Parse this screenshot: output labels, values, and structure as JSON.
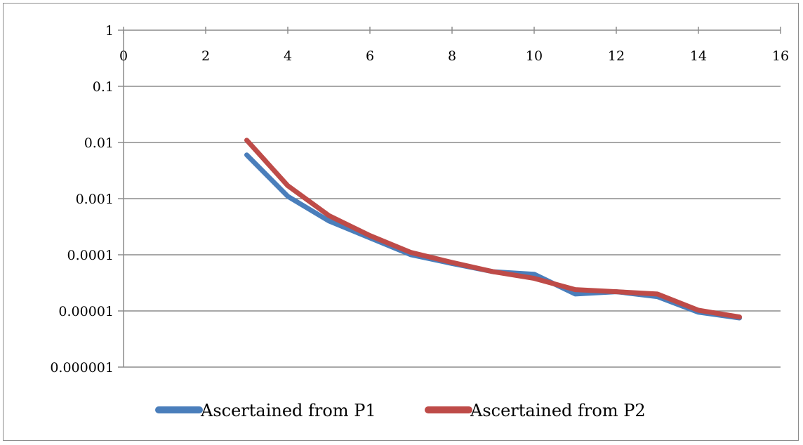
{
  "chart_data": {
    "type": "line",
    "title": "",
    "xlabel": "",
    "ylabel": "",
    "xlim": [
      0,
      16
    ],
    "ylim": [
      1e-06,
      1
    ],
    "y_scale": "log",
    "x_ticks": [
      "0",
      "2",
      "4",
      "6",
      "8",
      "10",
      "12",
      "14",
      "16"
    ],
    "y_ticks": [
      "1",
      "0.1",
      "0.01",
      "0.001",
      "0.0001",
      "0.00001",
      "0.000001"
    ],
    "grid": "horizontal",
    "legend_position": "bottom",
    "series": [
      {
        "name": "Ascertained from P1",
        "color": "#4a7ebb",
        "x": [
          3,
          4,
          5,
          6,
          7,
          8,
          9,
          10,
          11,
          12,
          13,
          14,
          15
        ],
        "y": [
          0.006,
          0.0011,
          0.0004,
          0.0002,
          0.0001,
          7e-05,
          5e-05,
          4.5e-05,
          2e-05,
          2.2e-05,
          1.8e-05,
          9.5e-06,
          7.5e-06
        ]
      },
      {
        "name": "Ascertained from P2",
        "color": "#be4b48",
        "x": [
          3,
          4,
          5,
          6,
          7,
          8,
          9,
          10,
          11,
          12,
          13,
          14,
          15
        ],
        "y": [
          0.011,
          0.0017,
          0.0005,
          0.00022,
          0.00011,
          7.3e-05,
          5e-05,
          3.8e-05,
          2.4e-05,
          2.2e-05,
          2e-05,
          1.03e-05,
          7.8e-06
        ]
      }
    ]
  }
}
